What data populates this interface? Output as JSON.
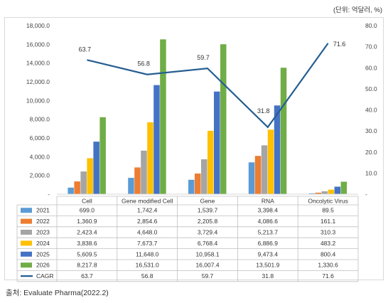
{
  "unit_note": "(단위: 억달러, %)",
  "source": "출처: Evaluate Pharma(2022.2)",
  "chart_data": {
    "type": "bar",
    "combo": "bar+line",
    "categories": [
      "Cell",
      "Gene modified Cell",
      "Gene",
      "RNA",
      "Oncolytic Virus"
    ],
    "series": [
      {
        "name": "2021",
        "values": [
          699.0,
          1742.4,
          1539.7,
          3398.4,
          89.5
        ],
        "labels": [
          "699.0",
          "1,742.4",
          "1,539.7",
          "3,398.4",
          "89.5"
        ],
        "color": "#5b9bd5"
      },
      {
        "name": "2022",
        "values": [
          1360.9,
          2854.6,
          2205.8,
          4086.6,
          161.1
        ],
        "labels": [
          "1,360.9",
          "2,854.6",
          "2,205.8",
          "4,086.6",
          "161.1"
        ],
        "color": "#ed7d31"
      },
      {
        "name": "2023",
        "values": [
          2423.4,
          4648.0,
          3729.4,
          5213.7,
          310.3
        ],
        "labels": [
          "2,423.4",
          "4,648.0",
          "3,729.4",
          "5,213.7",
          "310.3"
        ],
        "color": "#a5a5a5"
      },
      {
        "name": "2024",
        "values": [
          3838.6,
          7673.7,
          6768.4,
          6886.9,
          483.2
        ],
        "labels": [
          "3,838.6",
          "7,673.7",
          "6,768.4",
          "6,886.9",
          "483.2"
        ],
        "color": "#ffc000"
      },
      {
        "name": "2025",
        "values": [
          5609.5,
          11648.0,
          10958.1,
          9473.4,
          800.4
        ],
        "labels": [
          "5,609.5",
          "11,648.0",
          "10,958.1",
          "9,473.4",
          "800.4"
        ],
        "color": "#4472c4"
      },
      {
        "name": "2026",
        "values": [
          8217.8,
          16531.0,
          16007.4,
          13501.9,
          1330.6
        ],
        "labels": [
          "8,217.8",
          "16,531.0",
          "16,007.4",
          "13,501.9",
          "1,330.6"
        ],
        "color": "#70ad47"
      }
    ],
    "line_series": {
      "name": "CAGR",
      "values": [
        63.7,
        56.8,
        59.7,
        31.8,
        71.6
      ],
      "labels": [
        "63.7",
        "56.8",
        "59.7",
        "31.8",
        "71.6"
      ],
      "color": "#255e91",
      "axis": "right"
    },
    "y_left": {
      "min": 0,
      "max": 18000,
      "ticks": [
        "-",
        "2,000.0",
        "4,000.0",
        "6,000.0",
        "8,000.0",
        "10,000.0",
        "12,000.0",
        "14,000.0",
        "16,000.0",
        "18,000.0"
      ]
    },
    "y_right": {
      "min": 0,
      "max": 80,
      "ticks": [
        "-",
        "10.0",
        "20.0",
        "30.0",
        "40.0",
        "50.0",
        "60.0",
        "70.0",
        "80.0"
      ]
    },
    "grid": false,
    "legend": "data-table"
  }
}
